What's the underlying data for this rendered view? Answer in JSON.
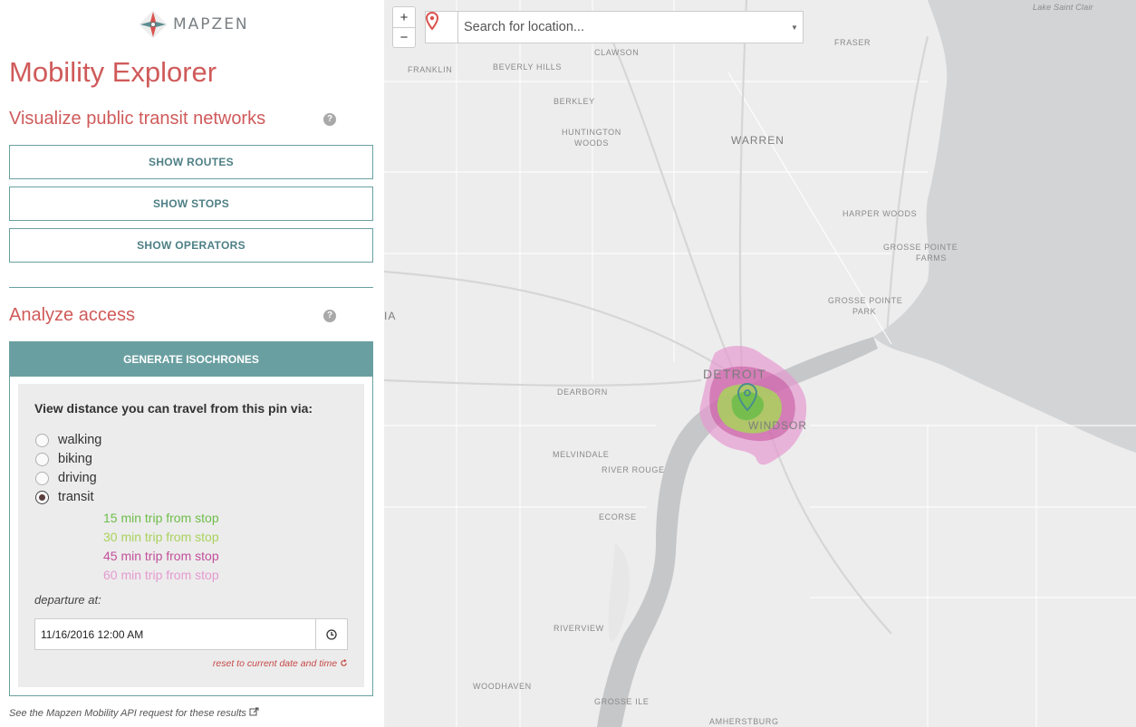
{
  "brand": {
    "name": "MAPZEN"
  },
  "app_title": "Mobility Explorer",
  "visualize": {
    "title": "Visualize public transit networks",
    "help": "?",
    "buttons": [
      "SHOW ROUTES",
      "SHOW STOPS",
      "SHOW OPERATORS"
    ]
  },
  "analyze": {
    "title": "Analyze access",
    "help": "?",
    "generate_label": "GENERATE ISOCHRONES",
    "prompt": "View distance you can travel from this pin via:",
    "modes": [
      {
        "label": "walking",
        "selected": false
      },
      {
        "label": "biking",
        "selected": false
      },
      {
        "label": "driving",
        "selected": false
      },
      {
        "label": "transit",
        "selected": true
      }
    ],
    "legend": [
      {
        "label": "15 min trip from stop",
        "color": "#6fbd4a"
      },
      {
        "label": "30 min trip from stop",
        "color": "#a9d25c"
      },
      {
        "label": "45 min trip from stop",
        "color": "#c2509a"
      },
      {
        "label": "60 min trip from stop",
        "color": "#e59ad0"
      }
    ],
    "departure_label": "departure at:",
    "departure_value": "11/16/2016 12:00 AM",
    "reset_label": "reset to current date and time"
  },
  "api_link": "See the Mapzen Mobility API request for these results",
  "map": {
    "zoom_in": "+",
    "zoom_out": "−",
    "search_placeholder": "Search for location...",
    "search_caret": "▼",
    "labels": {
      "lake_saint_clair": "Lake Saint Clair",
      "fraser": "FRASER",
      "clawson": "CLAWSON",
      "franklin": "FRANKLIN",
      "beverly_hills": "BEVERLY HILLS",
      "berkley": "BERKLEY",
      "huntington_woods_1": "HUNTINGTON",
      "huntington_woods_2": "WOODS",
      "warren": "WARREN",
      "harper_woods": "HARPER WOODS",
      "grosse_pointe_farms_1": "GROSSE POINTE",
      "grosse_pointe_farms_2": "FARMS",
      "grosse_pointe_park_1": "GROSSE POINTE",
      "grosse_pointe_park_2": "PARK",
      "edge_ia": "IA",
      "detroit": "DETROIT",
      "windsor": "WINDSOR",
      "dearborn": "DEARBORN",
      "melvindale": "MELVINDALE",
      "river_rouge": "RIVER ROUGE",
      "ecorse": "ECORSE",
      "riverview": "RIVERVIEW",
      "woodhaven": "WOODHAVEN",
      "grosse_ile": "GROSSE ILE",
      "amherstburg": "AMHERSTBURG"
    }
  }
}
